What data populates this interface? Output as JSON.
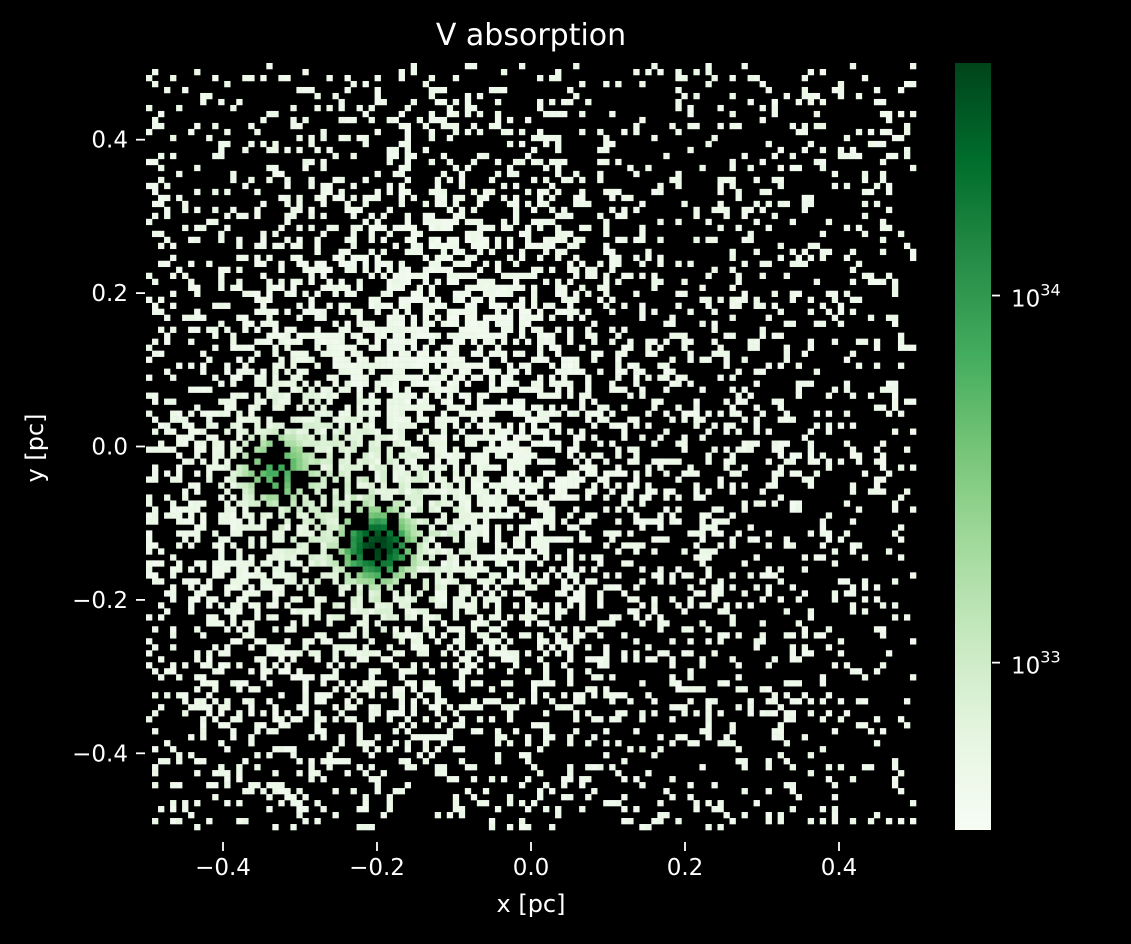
{
  "chart_data": {
    "type": "heatmap",
    "title": "V absorption",
    "xlabel": "x [pc]",
    "ylabel": "y [pc]",
    "xlim": [
      -0.5,
      0.5
    ],
    "ylim": [
      -0.5,
      0.5
    ],
    "x_ticks": [
      {
        "value": -0.4,
        "label": "−0.4"
      },
      {
        "value": -0.2,
        "label": "−0.2"
      },
      {
        "value": 0.0,
        "label": "0.0"
      },
      {
        "value": 0.2,
        "label": "0.2"
      },
      {
        "value": 0.4,
        "label": "0.4"
      }
    ],
    "y_ticks": [
      {
        "value": 0.4,
        "label": "0.4"
      },
      {
        "value": 0.2,
        "label": "0.2"
      },
      {
        "value": 0.0,
        "label": "0.0"
      },
      {
        "value": -0.2,
        "label": "−0.2"
      },
      {
        "value": -0.4,
        "label": "−0.4"
      }
    ],
    "bins": [
      128,
      128
    ],
    "colormap": "Greens",
    "colorbar": {
      "scale": "log",
      "range": [
        3.5e+32,
        4.3e+34
      ],
      "ticks": [
        {
          "value": 1e+33,
          "base": "10",
          "exponent": "33"
        },
        {
          "value": 1e+34,
          "base": "10",
          "exponent": "34"
        }
      ]
    },
    "grid": false,
    "background": "#000000",
    "dense_regions": [
      {
        "x": -0.2,
        "y": -0.13,
        "peak": 4e+34
      },
      {
        "x": -0.33,
        "y": -0.03,
        "peak": 6e+33
      }
    ]
  }
}
